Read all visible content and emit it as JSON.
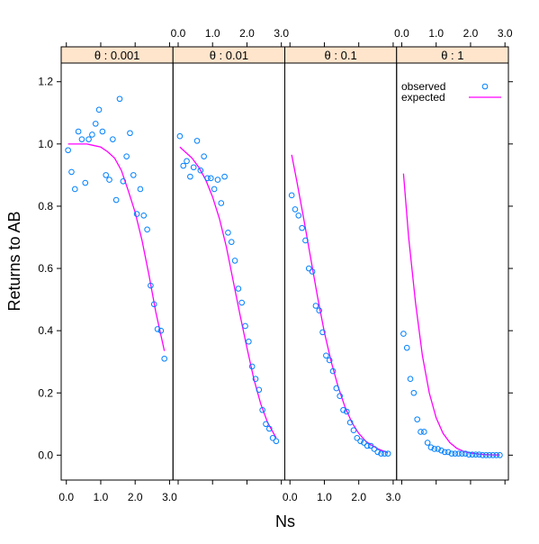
{
  "chart_data": {
    "type": "scatter",
    "xlabel": "Ns",
    "ylabel": "Returns to AB",
    "xlim": [
      -0.15,
      3.1
    ],
    "ylim": [
      -0.08,
      1.26
    ],
    "x_ticks": [
      0.0,
      1.0,
      2.0,
      3.0
    ],
    "x_tick_labels": [
      "0.0",
      "1.0",
      "2.0",
      "3.0"
    ],
    "y_ticks": [
      0.0,
      0.2,
      0.4,
      0.6,
      0.8,
      1.0,
      1.2
    ],
    "y_tick_labels": [
      "0.0",
      "0.2",
      "0.4",
      "0.6",
      "0.8",
      "1.0",
      "1.2"
    ],
    "legend": {
      "placement": "top-right",
      "entries": [
        {
          "name": "observed",
          "marker": "circle",
          "color": "#0080ff"
        },
        {
          "name": "expected",
          "marker": "line",
          "color": "#ff00ff"
        }
      ]
    },
    "colors": {
      "observed": "#0080ff",
      "expected": "#ff00ff",
      "strip": "#ffe5cc"
    },
    "panels": [
      {
        "strip_label": "θ : 0.001",
        "observed": {
          "x": [
            0.05,
            0.15,
            0.25,
            0.35,
            0.45,
            0.55,
            0.65,
            0.75,
            0.85,
            0.95,
            1.05,
            1.15,
            1.25,
            1.35,
            1.45,
            1.55,
            1.65,
            1.75,
            1.85,
            1.95,
            2.05,
            2.15,
            2.25,
            2.35,
            2.45,
            2.55,
            2.65,
            2.75,
            2.85
          ],
          "y": [
            0.98,
            0.91,
            0.855,
            1.04,
            1.015,
            0.875,
            1.015,
            1.03,
            1.065,
            1.11,
            1.04,
            0.9,
            0.885,
            1.015,
            0.82,
            1.145,
            0.88,
            0.96,
            1.035,
            0.9,
            0.775,
            0.855,
            0.77,
            0.725,
            0.545,
            0.485,
            0.405,
            0.4,
            0.31
          ]
        },
        "expected": {
          "x": [
            0.05,
            0.2,
            0.4,
            0.6,
            0.8,
            1.0,
            1.2,
            1.4,
            1.6,
            1.8,
            2.0,
            2.2,
            2.4,
            2.6,
            2.85
          ],
          "y": [
            1.0,
            1.0,
            1.0,
            1.0,
            0.995,
            0.99,
            0.975,
            0.955,
            0.915,
            0.85,
            0.78,
            0.69,
            0.58,
            0.46,
            0.335
          ]
        }
      },
      {
        "strip_label": "θ : 0.01",
        "observed": {
          "x": [
            0.05,
            0.15,
            0.25,
            0.35,
            0.45,
            0.55,
            0.65,
            0.75,
            0.85,
            0.95,
            1.05,
            1.15,
            1.25,
            1.35,
            1.45,
            1.55,
            1.65,
            1.75,
            1.85,
            1.95,
            2.05,
            2.15,
            2.25,
            2.35,
            2.45,
            2.55,
            2.65,
            2.75,
            2.85
          ],
          "y": [
            1.025,
            0.93,
            0.945,
            0.895,
            0.925,
            1.01,
            0.915,
            0.96,
            0.89,
            0.89,
            0.855,
            0.885,
            0.81,
            0.895,
            0.715,
            0.685,
            0.625,
            0.535,
            0.49,
            0.415,
            0.365,
            0.285,
            0.245,
            0.21,
            0.145,
            0.1,
            0.085,
            0.055,
            0.045
          ]
        },
        "expected": {
          "x": [
            0.05,
            0.2,
            0.4,
            0.6,
            0.8,
            1.0,
            1.2,
            1.4,
            1.6,
            1.8,
            2.0,
            2.2,
            2.4,
            2.6,
            2.85
          ],
          "y": [
            0.99,
            0.975,
            0.955,
            0.925,
            0.885,
            0.83,
            0.76,
            0.67,
            0.56,
            0.45,
            0.345,
            0.245,
            0.165,
            0.105,
            0.055
          ]
        }
      },
      {
        "strip_label": "θ : 0.1",
        "observed": {
          "x": [
            0.05,
            0.15,
            0.25,
            0.35,
            0.45,
            0.55,
            0.65,
            0.75,
            0.85,
            0.95,
            1.05,
            1.15,
            1.25,
            1.35,
            1.45,
            1.55,
            1.65,
            1.75,
            1.85,
            1.95,
            2.05,
            2.15,
            2.25,
            2.35,
            2.45,
            2.55,
            2.65,
            2.75,
            2.85
          ],
          "y": [
            0.835,
            0.79,
            0.77,
            0.73,
            0.69,
            0.6,
            0.59,
            0.48,
            0.465,
            0.395,
            0.32,
            0.305,
            0.27,
            0.215,
            0.19,
            0.145,
            0.14,
            0.105,
            0.08,
            0.055,
            0.045,
            0.04,
            0.03,
            0.03,
            0.02,
            0.01,
            0.005,
            0.005,
            0.005
          ]
        },
        "expected": {
          "x": [
            0.05,
            0.2,
            0.4,
            0.6,
            0.8,
            1.0,
            1.2,
            1.4,
            1.6,
            1.8,
            2.0,
            2.2,
            2.4,
            2.6,
            2.85
          ],
          "y": [
            0.965,
            0.88,
            0.76,
            0.635,
            0.51,
            0.395,
            0.3,
            0.22,
            0.155,
            0.105,
            0.07,
            0.045,
            0.03,
            0.018,
            0.008
          ]
        }
      },
      {
        "strip_label": "θ : 1",
        "observed": {
          "x": [
            0.05,
            0.15,
            0.25,
            0.35,
            0.45,
            0.55,
            0.65,
            0.75,
            0.85,
            0.95,
            1.05,
            1.15,
            1.25,
            1.35,
            1.45,
            1.55,
            1.65,
            1.75,
            1.85,
            1.95,
            2.05,
            2.15,
            2.25,
            2.35,
            2.45,
            2.55,
            2.65,
            2.75,
            2.85
          ],
          "y": [
            0.39,
            0.345,
            0.245,
            0.2,
            0.115,
            0.075,
            0.075,
            0.04,
            0.025,
            0.02,
            0.02,
            0.015,
            0.01,
            0.01,
            0.005,
            0.005,
            0.005,
            0.005,
            0.005,
            0.002,
            0.002,
            0.002,
            0.002,
            0.0,
            0.0,
            0.0,
            0.0,
            0.0,
            0.0
          ]
        },
        "expected": {
          "x": [
            0.05,
            0.2,
            0.4,
            0.6,
            0.8,
            1.0,
            1.2,
            1.4,
            1.6,
            1.8,
            2.0,
            2.2,
            2.4,
            2.6,
            2.85
          ],
          "y": [
            0.905,
            0.7,
            0.49,
            0.32,
            0.2,
            0.12,
            0.07,
            0.04,
            0.022,
            0.012,
            0.007,
            0.004,
            0.002,
            0.001,
            0.0005
          ]
        }
      }
    ]
  }
}
